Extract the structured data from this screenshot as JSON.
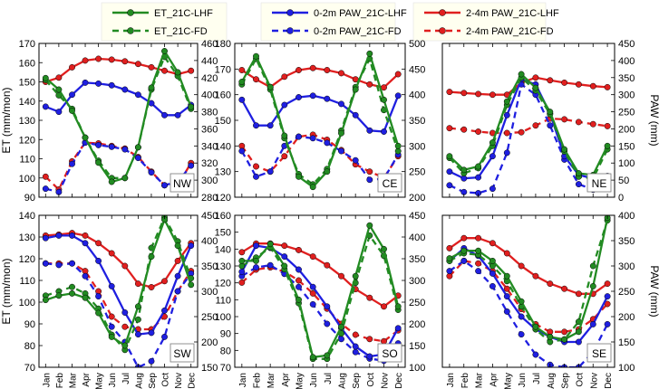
{
  "legend": {
    "items": [
      {
        "label": "ET_21C-LHF",
        "color": "#228b22",
        "dash": false
      },
      {
        "label": "ET_21C-FD",
        "color": "#228b22",
        "dash": true
      },
      {
        "label": "0-2m PAW_21C-LHF",
        "color": "#1f1fe0",
        "dash": false
      },
      {
        "label": "0-2m PAW_21C-FD",
        "color": "#1f1fe0",
        "dash": true
      },
      {
        "label": "2-4m PAW_21C-LHF",
        "color": "#e01f1f",
        "dash": false
      },
      {
        "label": "2-4m PAW_21C-FD",
        "color": "#e01f1f",
        "dash": true
      }
    ]
  },
  "chart_data": [
    {
      "type": "line",
      "region": "NW",
      "categories": [
        "Jan",
        "Feb",
        "Mar",
        "Apr",
        "May",
        "Jun",
        "Jul",
        "Aug",
        "Sep",
        "Oct",
        "Nov",
        "Dec"
      ],
      "ylabel_left": "ET (mm/mon)",
      "ylim_left": [
        90,
        170
      ],
      "yticks_left": [
        90,
        100,
        110,
        120,
        130,
        140,
        150,
        160,
        170
      ],
      "ylabel_right": "",
      "ylim_right": [
        280,
        460
      ],
      "yticks_right": [
        280,
        300,
        320,
        340,
        360,
        380,
        400,
        420,
        440,
        460
      ],
      "series": [
        {
          "name": "ET_21C-LHF",
          "axis": "left",
          "values": [
            152,
            146,
            135,
            121,
            108,
            98,
            100,
            116,
            147,
            166,
            155,
            137
          ]
        },
        {
          "name": "ET_21C-FD",
          "axis": "left",
          "values": [
            151,
            143,
            136,
            121,
            109,
            100,
            100,
            116,
            146,
            163,
            153,
            136
          ]
        },
        {
          "name": "0-2m PAW_21C-LHF",
          "axis": "right",
          "values": [
            386,
            380,
            400,
            414,
            413,
            411,
            406,
            400,
            390,
            376,
            376,
            388
          ]
        },
        {
          "name": "0-2m PAW_21C-FD",
          "axis": "right",
          "values": [
            290,
            286,
            319,
            344,
            341,
            339,
            336,
            326,
            309,
            294,
            298,
            317
          ]
        },
        {
          "name": "2-4m PAW_21C-LHF",
          "axis": "right",
          "values": [
            415,
            420,
            432,
            440,
            442,
            441,
            439,
            436,
            432,
            428,
            424,
            428
          ]
        },
        {
          "name": "2-4m PAW_21C-FD",
          "axis": "right",
          "values": [
            304,
            289,
            322,
            344,
            343,
            340,
            337,
            327,
            310,
            294,
            294,
            320
          ]
        }
      ]
    },
    {
      "type": "line",
      "region": "CE",
      "categories": [
        "Jan",
        "Feb",
        "Mar",
        "Apr",
        "May",
        "Jun",
        "Jul",
        "Aug",
        "Sep",
        "Oct",
        "Nov",
        "Dec"
      ],
      "ylabel_left": "",
      "ylim_left": [
        120,
        180
      ],
      "yticks_left": [
        120,
        130,
        140,
        150,
        160,
        170,
        180
      ],
      "ylabel_right": "",
      "ylim_right": [
        200,
        500
      ],
      "yticks_right": [
        200,
        250,
        300,
        350,
        400,
        450,
        500
      ],
      "series": [
        {
          "name": "ET_21C-LHF",
          "axis": "left",
          "values": [
            165,
            175,
            163,
            144,
            128,
            124,
            130,
            145,
            162,
            176,
            158,
            140
          ]
        },
        {
          "name": "ET_21C-FD",
          "axis": "left",
          "values": [
            164,
            174,
            162,
            143,
            129,
            125,
            131,
            146,
            163,
            174,
            154,
            138
          ]
        },
        {
          "name": "0-2m PAW_21C-LHF",
          "axis": "right",
          "values": [
            390,
            340,
            340,
            380,
            395,
            398,
            392,
            382,
            360,
            330,
            328,
            398
          ]
        },
        {
          "name": "0-2m PAW_21C-FD",
          "axis": "right",
          "values": [
            290,
            240,
            250,
            300,
            318,
            315,
            306,
            290,
            272,
            234,
            236,
            283
          ]
        },
        {
          "name": "2-4m PAW_21C-LHF",
          "axis": "right",
          "values": [
            448,
            430,
            415,
            435,
            448,
            452,
            448,
            442,
            430,
            420,
            414,
            440
          ]
        },
        {
          "name": "2-4m PAW_21C-FD",
          "axis": "right",
          "values": [
            300,
            260,
            250,
            280,
            318,
            322,
            312,
            292,
            264,
            250,
            238,
            280
          ]
        }
      ]
    },
    {
      "type": "line",
      "region": "NE",
      "categories": [
        "Jan",
        "Feb",
        "Mar",
        "Apr",
        "May",
        "Jun",
        "Jul",
        "Aug",
        "Sep",
        "Oct",
        "Nov",
        "Dec"
      ],
      "ylabel_left": "",
      "ylim_left": [
        0,
        150
      ],
      "yticks_left": [],
      "ylabel_right": "PAW (mm)",
      "ylim_right": [
        0,
        450
      ],
      "yticks_right": [
        0,
        50,
        100,
        150,
        200,
        250,
        300,
        350,
        400,
        450
      ],
      "series": [
        {
          "name": "ET_21C-LHF",
          "axis": "right",
          "values": [
            120,
            80,
            90,
            160,
            280,
            360,
            320,
            250,
            140,
            70,
            65,
            150
          ]
        },
        {
          "name": "ET_21C-FD",
          "axis": "right",
          "values": [
            115,
            70,
            85,
            150,
            270,
            350,
            312,
            243,
            134,
            60,
            55,
            140
          ]
        },
        {
          "name": "0-2m PAW_21C-LHF",
          "axis": "right",
          "values": [
            75,
            55,
            58,
            120,
            240,
            345,
            330,
            245,
            120,
            65,
            55,
            62
          ]
        },
        {
          "name": "0-2m PAW_21C-FD",
          "axis": "right",
          "values": [
            35,
            15,
            12,
            25,
            130,
            330,
            300,
            210,
            110,
            38,
            22,
            25
          ]
        },
        {
          "name": "2-4m PAW_21C-LHF",
          "axis": "right",
          "values": [
            308,
            305,
            302,
            300,
            300,
            335,
            350,
            342,
            335,
            330,
            325,
            322
          ]
        },
        {
          "name": "2-4m PAW_21C-FD",
          "axis": "right",
          "values": [
            202,
            198,
            192,
            188,
            188,
            190,
            210,
            230,
            228,
            220,
            214,
            208
          ]
        }
      ]
    },
    {
      "type": "line",
      "region": "SW",
      "categories": [
        "Jan",
        "Feb",
        "Mar",
        "Apr",
        "May",
        "Jun",
        "Jul",
        "Aug",
        "Sep",
        "Oct",
        "Nov",
        "Dec"
      ],
      "ylabel_left": "ET (mm/mon)",
      "ylim_left": [
        70,
        140
      ],
      "yticks_left": [
        70,
        80,
        90,
        100,
        110,
        120,
        130,
        140
      ],
      "ylabel_right": "",
      "ylim_right": [
        150,
        450
      ],
      "yticks_right": [
        150,
        200,
        250,
        300,
        350,
        400,
        450
      ],
      "series": [
        {
          "name": "ET_21C-LHF",
          "axis": "left",
          "values": [
            101,
            103,
            104,
            102,
            95,
            84,
            80,
            98,
            121,
            138,
            126,
            108
          ]
        },
        {
          "name": "ET_21C-FD",
          "axis": "left",
          "values": [
            103,
            105,
            107,
            104,
            97,
            85,
            78,
            92,
            125,
            139,
            128,
            111
          ]
        },
        {
          "name": "0-2m PAW_21C-LHF",
          "axis": "right",
          "values": [
            405,
            410,
            410,
            395,
            360,
            310,
            258,
            215,
            218,
            262,
            330,
            390
          ]
        },
        {
          "name": "0-2m PAW_21C-FD",
          "axis": "right",
          "values": [
            355,
            352,
            355,
            330,
            290,
            230,
            200,
            150,
            162,
            210,
            300,
            335
          ]
        },
        {
          "name": "2-4m PAW_21C-LHF",
          "axis": "right",
          "values": [
            410,
            412,
            415,
            410,
            395,
            375,
            350,
            315,
            308,
            320,
            360,
            395
          ]
        },
        {
          "name": "2-4m PAW_21C-FD",
          "axis": "right",
          "values": [
            355,
            355,
            355,
            340,
            300,
            250,
            230,
            225,
            225,
            250,
            300,
            340
          ]
        }
      ]
    },
    {
      "type": "line",
      "region": "SO",
      "categories": [
        "Jan",
        "Feb",
        "Mar",
        "Apr",
        "May",
        "Jun",
        "Jul",
        "Aug",
        "Sep",
        "Oct",
        "Nov",
        "Dec"
      ],
      "ylabel_left": "",
      "ylim_left": [
        70,
        160
      ],
      "yticks_left": [
        70,
        80,
        90,
        100,
        110,
        120,
        130,
        140,
        150,
        160
      ],
      "ylabel_right": "",
      "ylim_right": [
        100,
        450
      ],
      "yticks_right": [
        100,
        150,
        200,
        250,
        300,
        350,
        400,
        450
      ],
      "series": [
        {
          "name": "ET_21C-LHF",
          "axis": "left",
          "values": [
            133,
            133,
            143,
            130,
            110,
            76,
            77,
            94,
            124,
            154,
            140,
            106
          ]
        },
        {
          "name": "ET_21C-FD",
          "axis": "left",
          "values": [
            130,
            135,
            141,
            128,
            108,
            75,
            75,
            90,
            120,
            148,
            136,
            104
          ]
        },
        {
          "name": "0-2m PAW_21C-LHF",
          "axis": "right",
          "values": [
            320,
            380,
            375,
            355,
            325,
            285,
            240,
            190,
            148,
            125,
            130,
            190
          ]
        },
        {
          "name": "0-2m PAW_21C-FD",
          "axis": "right",
          "values": [
            310,
            330,
            335,
            315,
            285,
            245,
            200,
            165,
            135,
            120,
            115,
            155
          ]
        },
        {
          "name": "2-4m PAW_21C-LHF",
          "axis": "right",
          "values": [
            365,
            385,
            385,
            380,
            370,
            355,
            335,
            310,
            280,
            260,
            240,
            265
          ]
        },
        {
          "name": "2-4m PAW_21C-FD",
          "axis": "right",
          "values": [
            295,
            325,
            330,
            320,
            300,
            270,
            235,
            200,
            175,
            165,
            160,
            185
          ]
        }
      ]
    },
    {
      "type": "line",
      "region": "SE",
      "categories": [
        "Jan",
        "Feb",
        "Mar",
        "Apr",
        "May",
        "Jun",
        "Jul",
        "Aug",
        "Sep",
        "Oct",
        "Nov",
        "Dec"
      ],
      "ylabel_left": "",
      "ylim_left": [
        0,
        100
      ],
      "yticks_left": [],
      "ylabel_right": "PAW (mm)",
      "ylim_right": [
        100,
        400
      ],
      "yticks_right": [
        100,
        150,
        200,
        250,
        300,
        350,
        400
      ],
      "series": [
        {
          "name": "ET_21C-LHF",
          "axis": "right",
          "values": [
            315,
            330,
            330,
            310,
            280,
            230,
            180,
            160,
            155,
            170,
            260,
            395
          ]
        },
        {
          "name": "ET_21C-FD",
          "axis": "right",
          "values": [
            310,
            325,
            322,
            300,
            270,
            220,
            175,
            150,
            155,
            190,
            300,
            390
          ]
        },
        {
          "name": "0-2m PAW_21C-LHF",
          "axis": "right",
          "values": [
            310,
            335,
            320,
            285,
            240,
            200,
            175,
            160,
            150,
            150,
            185,
            240
          ]
        },
        {
          "name": "0-2m PAW_21C-FD",
          "axis": "right",
          "values": [
            290,
            310,
            290,
            260,
            210,
            165,
            125,
            105,
            100,
            100,
            130,
            185
          ]
        },
        {
          "name": "2-4m PAW_21C-LHF",
          "axis": "right",
          "values": [
            335,
            355,
            355,
            345,
            325,
            300,
            280,
            265,
            255,
            245,
            245,
            265
          ]
        },
        {
          "name": "2-4m PAW_21C-FD",
          "axis": "right",
          "values": [
            280,
            310,
            305,
            290,
            255,
            215,
            185,
            170,
            170,
            175,
            195,
            225
          ]
        }
      ]
    }
  ]
}
